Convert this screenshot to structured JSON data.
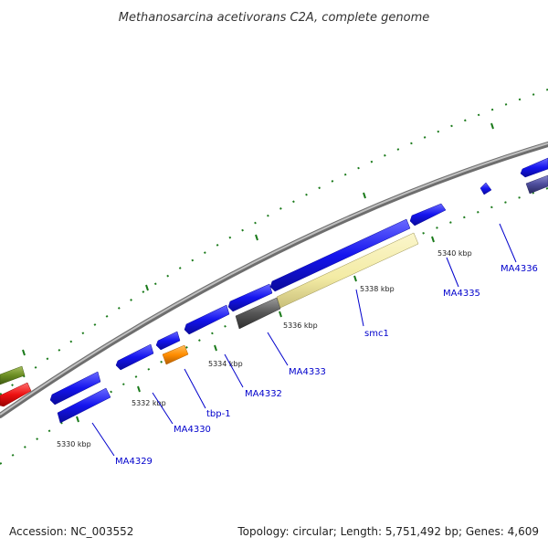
{
  "title": "Methanosarcina acetivorans C2A, complete genome",
  "footer": {
    "accession": "Accession: NC_003552",
    "summary": "Topology: circular; Length: 5,751,492 bp; Genes: 4,609"
  },
  "colors": {
    "backbone": "#8c8c8c",
    "gene_default": "#1010e8",
    "tick": "#1a7a1a",
    "label": "#0000cc",
    "smc1": "#f3eba4",
    "tbp_1": "#ff8c00",
    "gray_feature": "#555555",
    "green_feature": "#6b8e23",
    "red_feature": "#ee1111",
    "purple_feature": "#4b4b9a"
  },
  "scale_ticks": [
    "5330 kbp",
    "5332 kbp",
    "5334 kbp",
    "5336 kbp",
    "5338 kbp",
    "5340 kbp"
  ],
  "gene_labels": [
    "MA4329",
    "MA4330",
    "tbp-1",
    "MA4332",
    "MA4333",
    "smc1",
    "MA4335",
    "MA4336"
  ]
}
